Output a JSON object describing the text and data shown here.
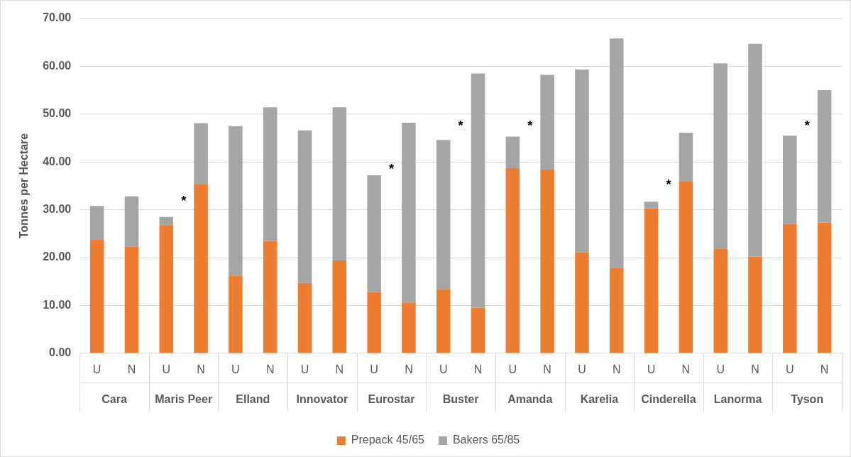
{
  "chart_data": {
    "type": "bar",
    "stacked": true,
    "ylabel": "Tonnes per Hectare",
    "categories": [
      "U",
      "N",
      "U",
      "N",
      "U",
      "N",
      "U",
      "N",
      "U",
      "N",
      "U",
      "N",
      "U",
      "N",
      "U",
      "N",
      "U",
      "N",
      "U",
      "N",
      "U",
      "N"
    ],
    "series": [
      {
        "name": "Prepack 45/65",
        "color": "#ed7d31",
        "values": [
          23.7,
          22.3,
          26.8,
          35.4,
          16.2,
          23.5,
          14.7,
          19.4,
          12.8,
          10.6,
          13.4,
          9.5,
          38.7,
          38.4,
          21.1,
          17.9,
          30.3,
          36.0,
          21.9,
          20.2,
          27.0,
          27.3
        ]
      },
      {
        "name": "Bakers 65/85",
        "color": "#a5a5a5",
        "values": [
          7.1,
          10.5,
          1.7,
          12.7,
          31.3,
          27.9,
          31.9,
          32.0,
          24.4,
          37.6,
          31.2,
          49.0,
          6.6,
          19.8,
          38.2,
          47.9,
          1.4,
          10.1,
          38.7,
          44.5,
          18.5,
          27.7
        ]
      }
    ],
    "ylim": [
      0,
      70
    ],
    "yticks": [
      {
        "value": 0,
        "label": "0.00"
      },
      {
        "value": 10,
        "label": "10.00"
      },
      {
        "value": 20,
        "label": "20.00"
      },
      {
        "value": 30,
        "label": "30.00"
      },
      {
        "value": 40,
        "label": "40.00"
      },
      {
        "value": 50,
        "label": "50.00"
      },
      {
        "value": 60,
        "label": "60.00"
      },
      {
        "value": 70,
        "label": "70.00"
      }
    ],
    "grid": "y",
    "legend": "bottom",
    "annotations": [
      "Cara",
      "Maris Peer",
      "Elland",
      "Innovator",
      "Eurostar",
      "Buster",
      "Amanda",
      "Karelia",
      "Cinderella",
      "Lanorma",
      "Tyson",
      "*",
      "*",
      "*",
      "*",
      "*",
      "*"
    ]
  }
}
